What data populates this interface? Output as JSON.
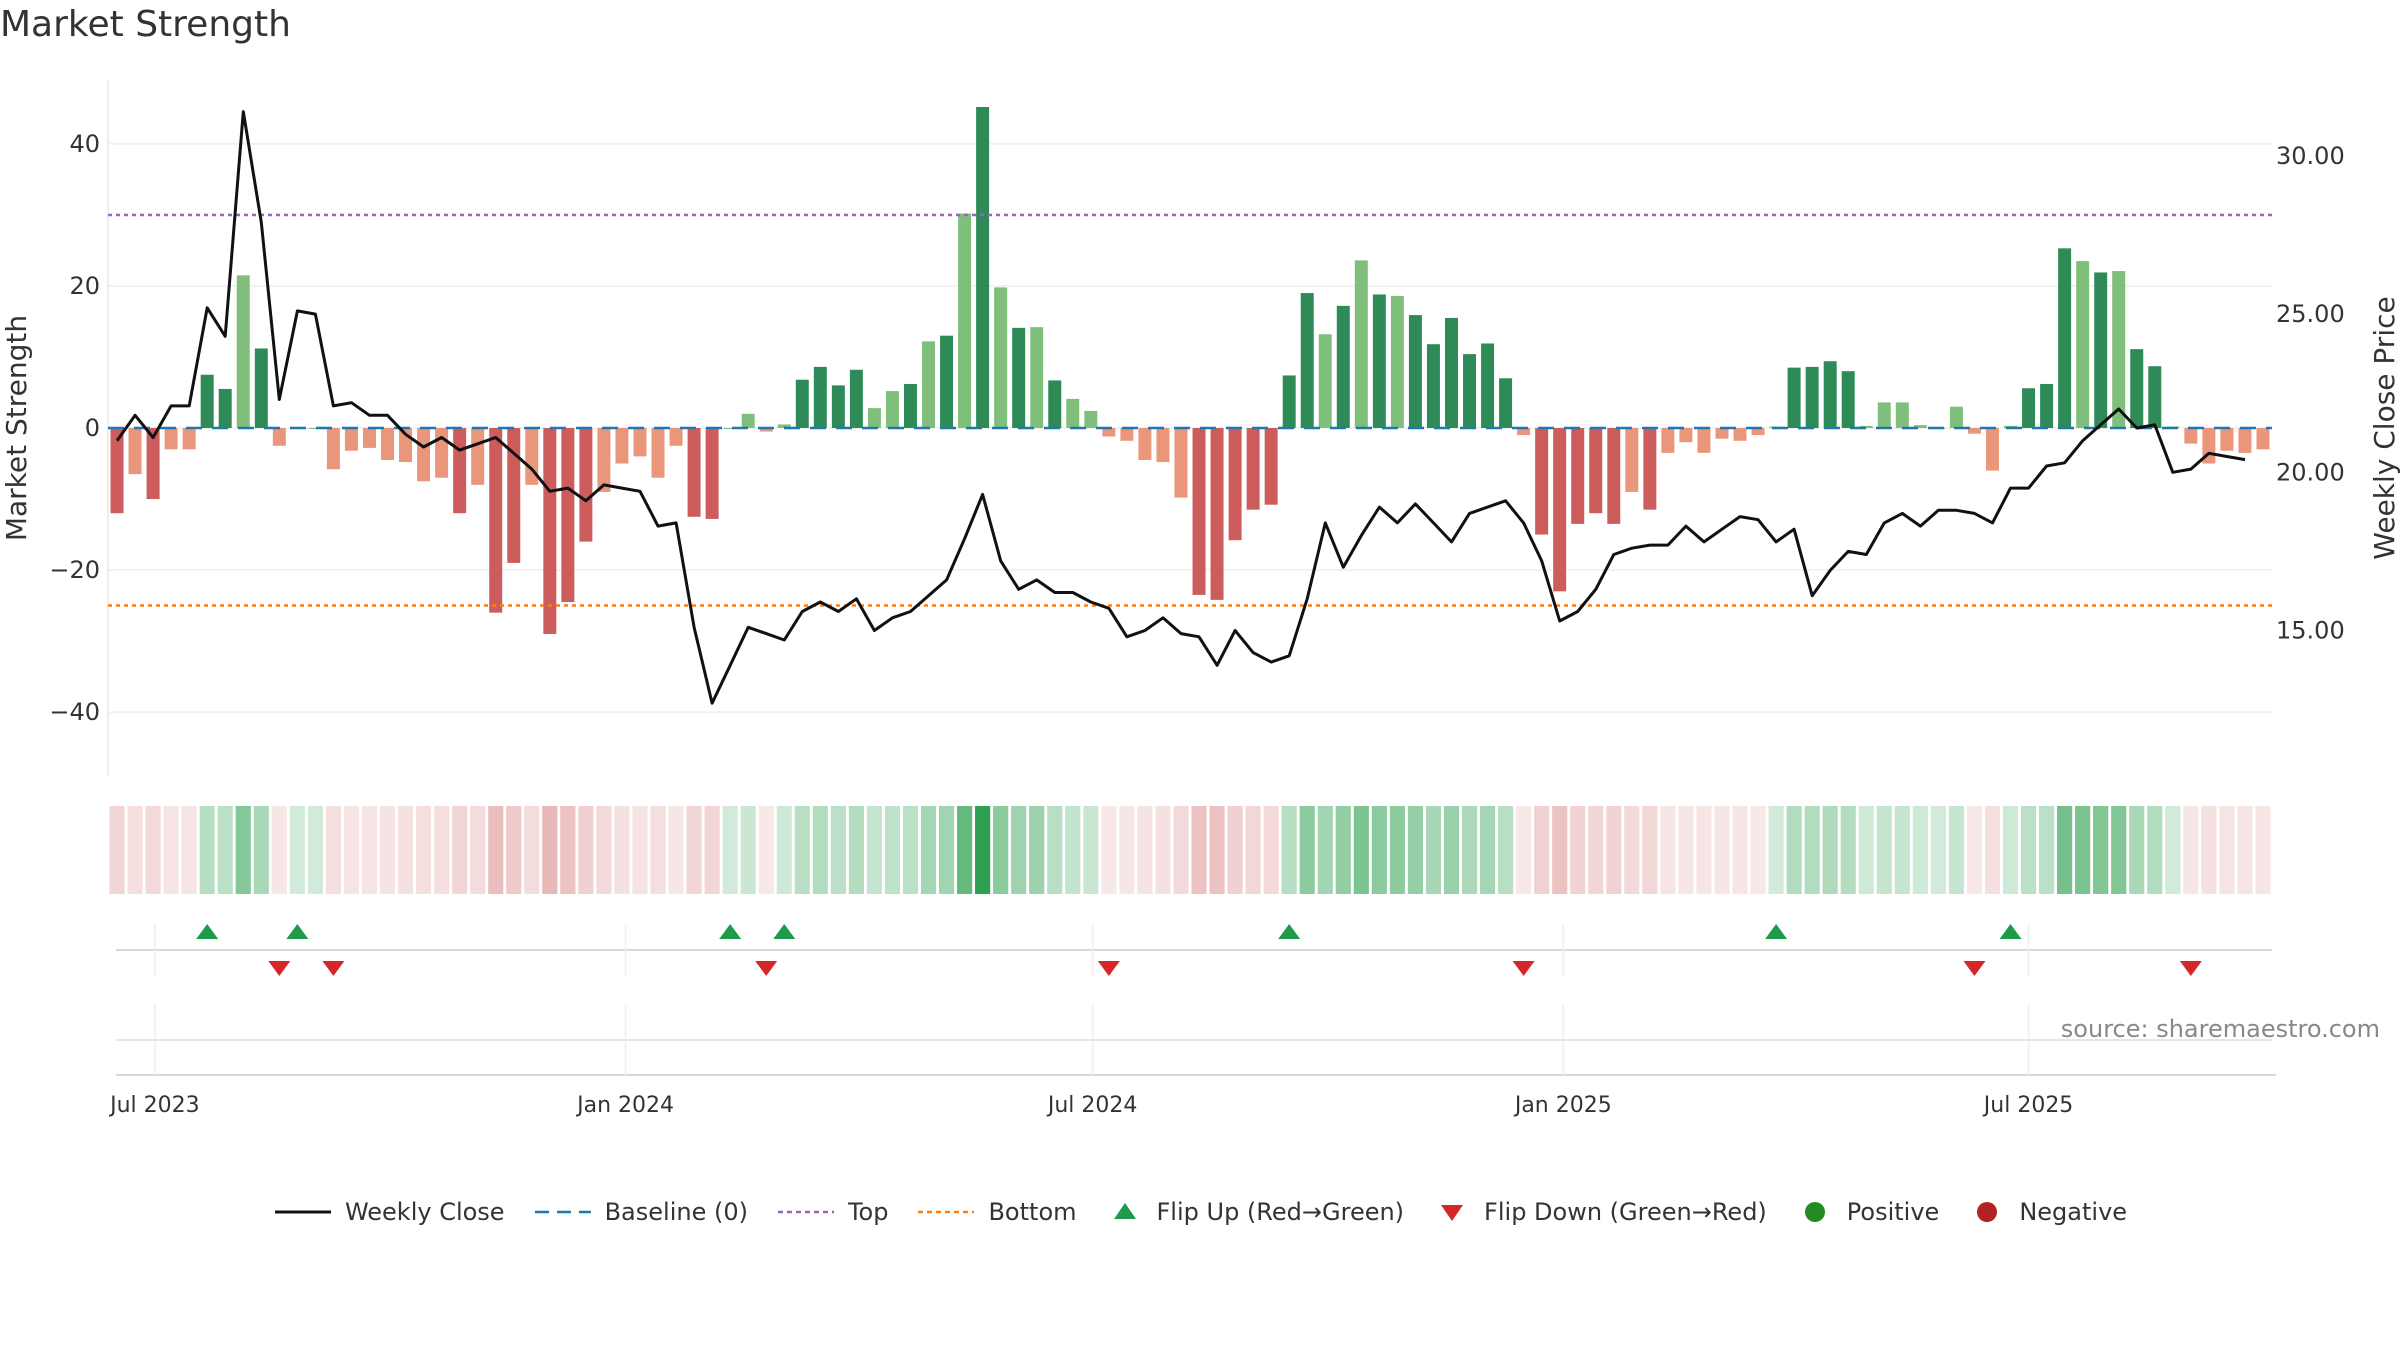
{
  "title": "Market Strength",
  "source_text": "source: sharemaestro.com",
  "colors": {
    "strong_green": "#2e8b57",
    "light_green": "#7fbf7b",
    "strong_red": "#cd5c5c",
    "light_red": "#e9967a",
    "price_line": "#111111",
    "baseline": "#1f77b4",
    "top_line": "#9467bd",
    "bottom_line": "#ff7f0e",
    "flip_up": "#1e9b4a",
    "flip_down": "#d62728",
    "positive": "#228b22",
    "negative": "#b22222"
  },
  "legend": [
    {
      "key": "close",
      "label": "Weekly Close"
    },
    {
      "key": "baseline",
      "label": "Baseline (0)"
    },
    {
      "key": "top",
      "label": "Top"
    },
    {
      "key": "bottom",
      "label": "Bottom"
    },
    {
      "key": "flipup",
      "label": "Flip Up (Red→Green)"
    },
    {
      "key": "flipdown",
      "label": "Flip Down (Green→Red)"
    },
    {
      "key": "positive",
      "label": "Positive"
    },
    {
      "key": "negative",
      "label": "Negative"
    }
  ],
  "chart_data": {
    "type": "bar",
    "title": "Market Strength",
    "ylabel": "Market Strength",
    "y2label": "Weekly Close Price",
    "ylim": [
      -49,
      49
    ],
    "y2lim": [
      10.4,
      32.4
    ],
    "yticks": [
      40,
      20,
      0,
      -20,
      -40
    ],
    "ytick_labels": [
      "40",
      "20",
      "0",
      "−20",
      "−40"
    ],
    "y2ticks": [
      30,
      25,
      20,
      15
    ],
    "y2tick_labels": [
      "30.00",
      "25.00",
      "20.00",
      "15.00"
    ],
    "top_level": 30,
    "bottom_level": -25,
    "baseline": 0,
    "x_tick_labels": [
      {
        "label": "Jul 2023",
        "week": 2.1
      },
      {
        "label": "Jan 2024",
        "week": 28.2
      },
      {
        "label": "Jul 2024",
        "week": 54.1
      },
      {
        "label": "Jan 2025",
        "week": 80.2
      },
      {
        "label": "Jul 2025",
        "week": 106.0
      }
    ],
    "strength": [
      -12,
      -6.5,
      -10,
      -3,
      -3,
      7.5,
      5.5,
      21.5,
      11.2,
      -2.5,
      0,
      0,
      -5.8,
      -3.2,
      -2.8,
      -4.5,
      -4.8,
      -7.5,
      -7,
      -12,
      -8,
      -26,
      -19,
      -8,
      -29,
      -24.5,
      -16,
      -9,
      -5,
      -4,
      -7,
      -2.5,
      -12.5,
      -12.8,
      0,
      2,
      -0.5,
      0.5,
      6.8,
      8.6,
      6,
      8.2,
      2.8,
      5.2,
      6.2,
      12.2,
      13,
      30.2,
      45.2,
      19.8,
      14.1,
      14.2,
      6.7,
      4.1,
      2.4,
      -1.2,
      -1.8,
      -4.5,
      -4.8,
      -9.8,
      -23.5,
      -24.2,
      -15.8,
      -11.5,
      -10.8,
      7.4,
      19,
      13.2,
      17.2,
      23.6,
      18.8,
      18.6,
      15.9,
      11.8,
      15.5,
      10.4,
      11.9,
      7,
      -1,
      -15,
      -23,
      -13.5,
      -12,
      -13.5,
      -9,
      -11.5,
      -3.5,
      -2,
      -3.5,
      -1.5,
      -1.8,
      -1,
      0.2,
      8.5,
      8.6,
      9.4,
      8,
      0.3,
      3.6,
      3.6,
      0.4,
      0,
      3,
      -0.8,
      -6,
      0.3,
      5.6,
      6.2,
      25.3,
      23.5,
      21.9,
      22.1,
      11.1,
      8.7,
      0.2,
      -2.2,
      -5,
      -3.2,
      -3.5,
      -3
    ],
    "close": [
      21,
      21.8,
      21.1,
      22.1,
      22.1,
      25.2,
      24.3,
      31.4,
      27.9,
      22.3,
      25.1,
      25,
      22.1,
      22.2,
      21.8,
      21.8,
      21.2,
      20.8,
      21.1,
      20.7,
      20.9,
      21.1,
      20.6,
      20.1,
      19.4,
      19.5,
      19.1,
      19.6,
      19.5,
      19.4,
      18.3,
      18.4,
      15.1,
      12.7,
      13.9,
      15.1,
      14.9,
      14.7,
      15.6,
      15.9,
      15.6,
      16,
      15,
      15.4,
      15.6,
      16.1,
      16.6,
      17.9,
      19.3,
      17.2,
      16.3,
      16.6,
      16.2,
      16.2,
      15.9,
      15.7,
      14.8,
      15,
      15.4,
      14.9,
      14.8,
      13.9,
      15,
      14.3,
      14,
      14.2,
      16,
      18.4,
      17,
      18,
      18.9,
      18.4,
      19,
      18.4,
      17.8,
      18.7,
      18.9,
      19.1,
      18.4,
      17.2,
      15.3,
      15.6,
      16.3,
      17.4,
      17.6,
      17.7,
      17.7,
      18.3,
      17.8,
      18.2,
      18.6,
      18.5,
      17.8,
      18.2,
      16.1,
      16.9,
      17.5,
      17.4,
      18.4,
      18.7,
      18.3,
      18.8,
      18.8,
      18.7,
      18.4,
      19.5,
      19.5,
      20.2,
      20.3,
      21,
      21.5,
      22,
      21.4,
      21.5,
      20,
      20.1,
      20.6,
      20.5,
      20.4
    ]
  }
}
